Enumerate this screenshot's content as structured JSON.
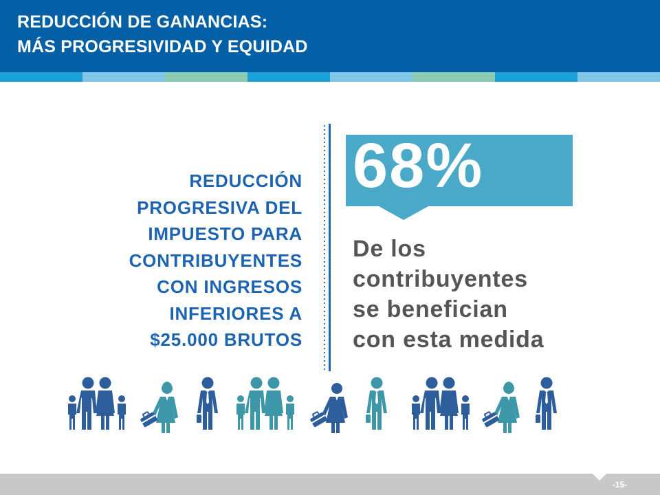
{
  "header": {
    "title_line1": "REDUCCIÓN  DE GANANCIAS:",
    "title_line2": "MÁS PROGRESIVIDAD  Y EQUIDAD"
  },
  "colors": {
    "header_bg": "#0360a6",
    "stripe": [
      "#1ba1d5",
      "#7fc6e8",
      "#89cbb3",
      "#1ba1d5",
      "#7fc6e8",
      "#89cbb3",
      "#1ba1d5",
      "#7fc6e8"
    ],
    "left_text": "#1c64b2",
    "percent_box": "#4aa8c8",
    "right_text": "#555555",
    "people_dark": "#2e5d9b",
    "people_teal": "#3d97a8"
  },
  "left_text": {
    "lines": [
      "REDUCCIÓN",
      "PROGRESIVA DEL",
      "IMPUESTO PARA",
      "CONTRIBUYENTES",
      "CON INGRESOS",
      "INFERIORES A",
      "$25.000 BRUTOS"
    ]
  },
  "stat": {
    "value": "68%"
  },
  "right_text": {
    "lines": [
      "De los",
      "contribuyentes",
      "se benefician",
      "con esta medida"
    ]
  },
  "people_icons": [
    "family-icon",
    "businesswoman-icon",
    "businessman-icon",
    "family-icon",
    "businesswoman-icon",
    "businessman-icon",
    "family-icon",
    "businesswoman-icon",
    "businessman-icon"
  ],
  "footer": {
    "page_number": "-15-"
  }
}
